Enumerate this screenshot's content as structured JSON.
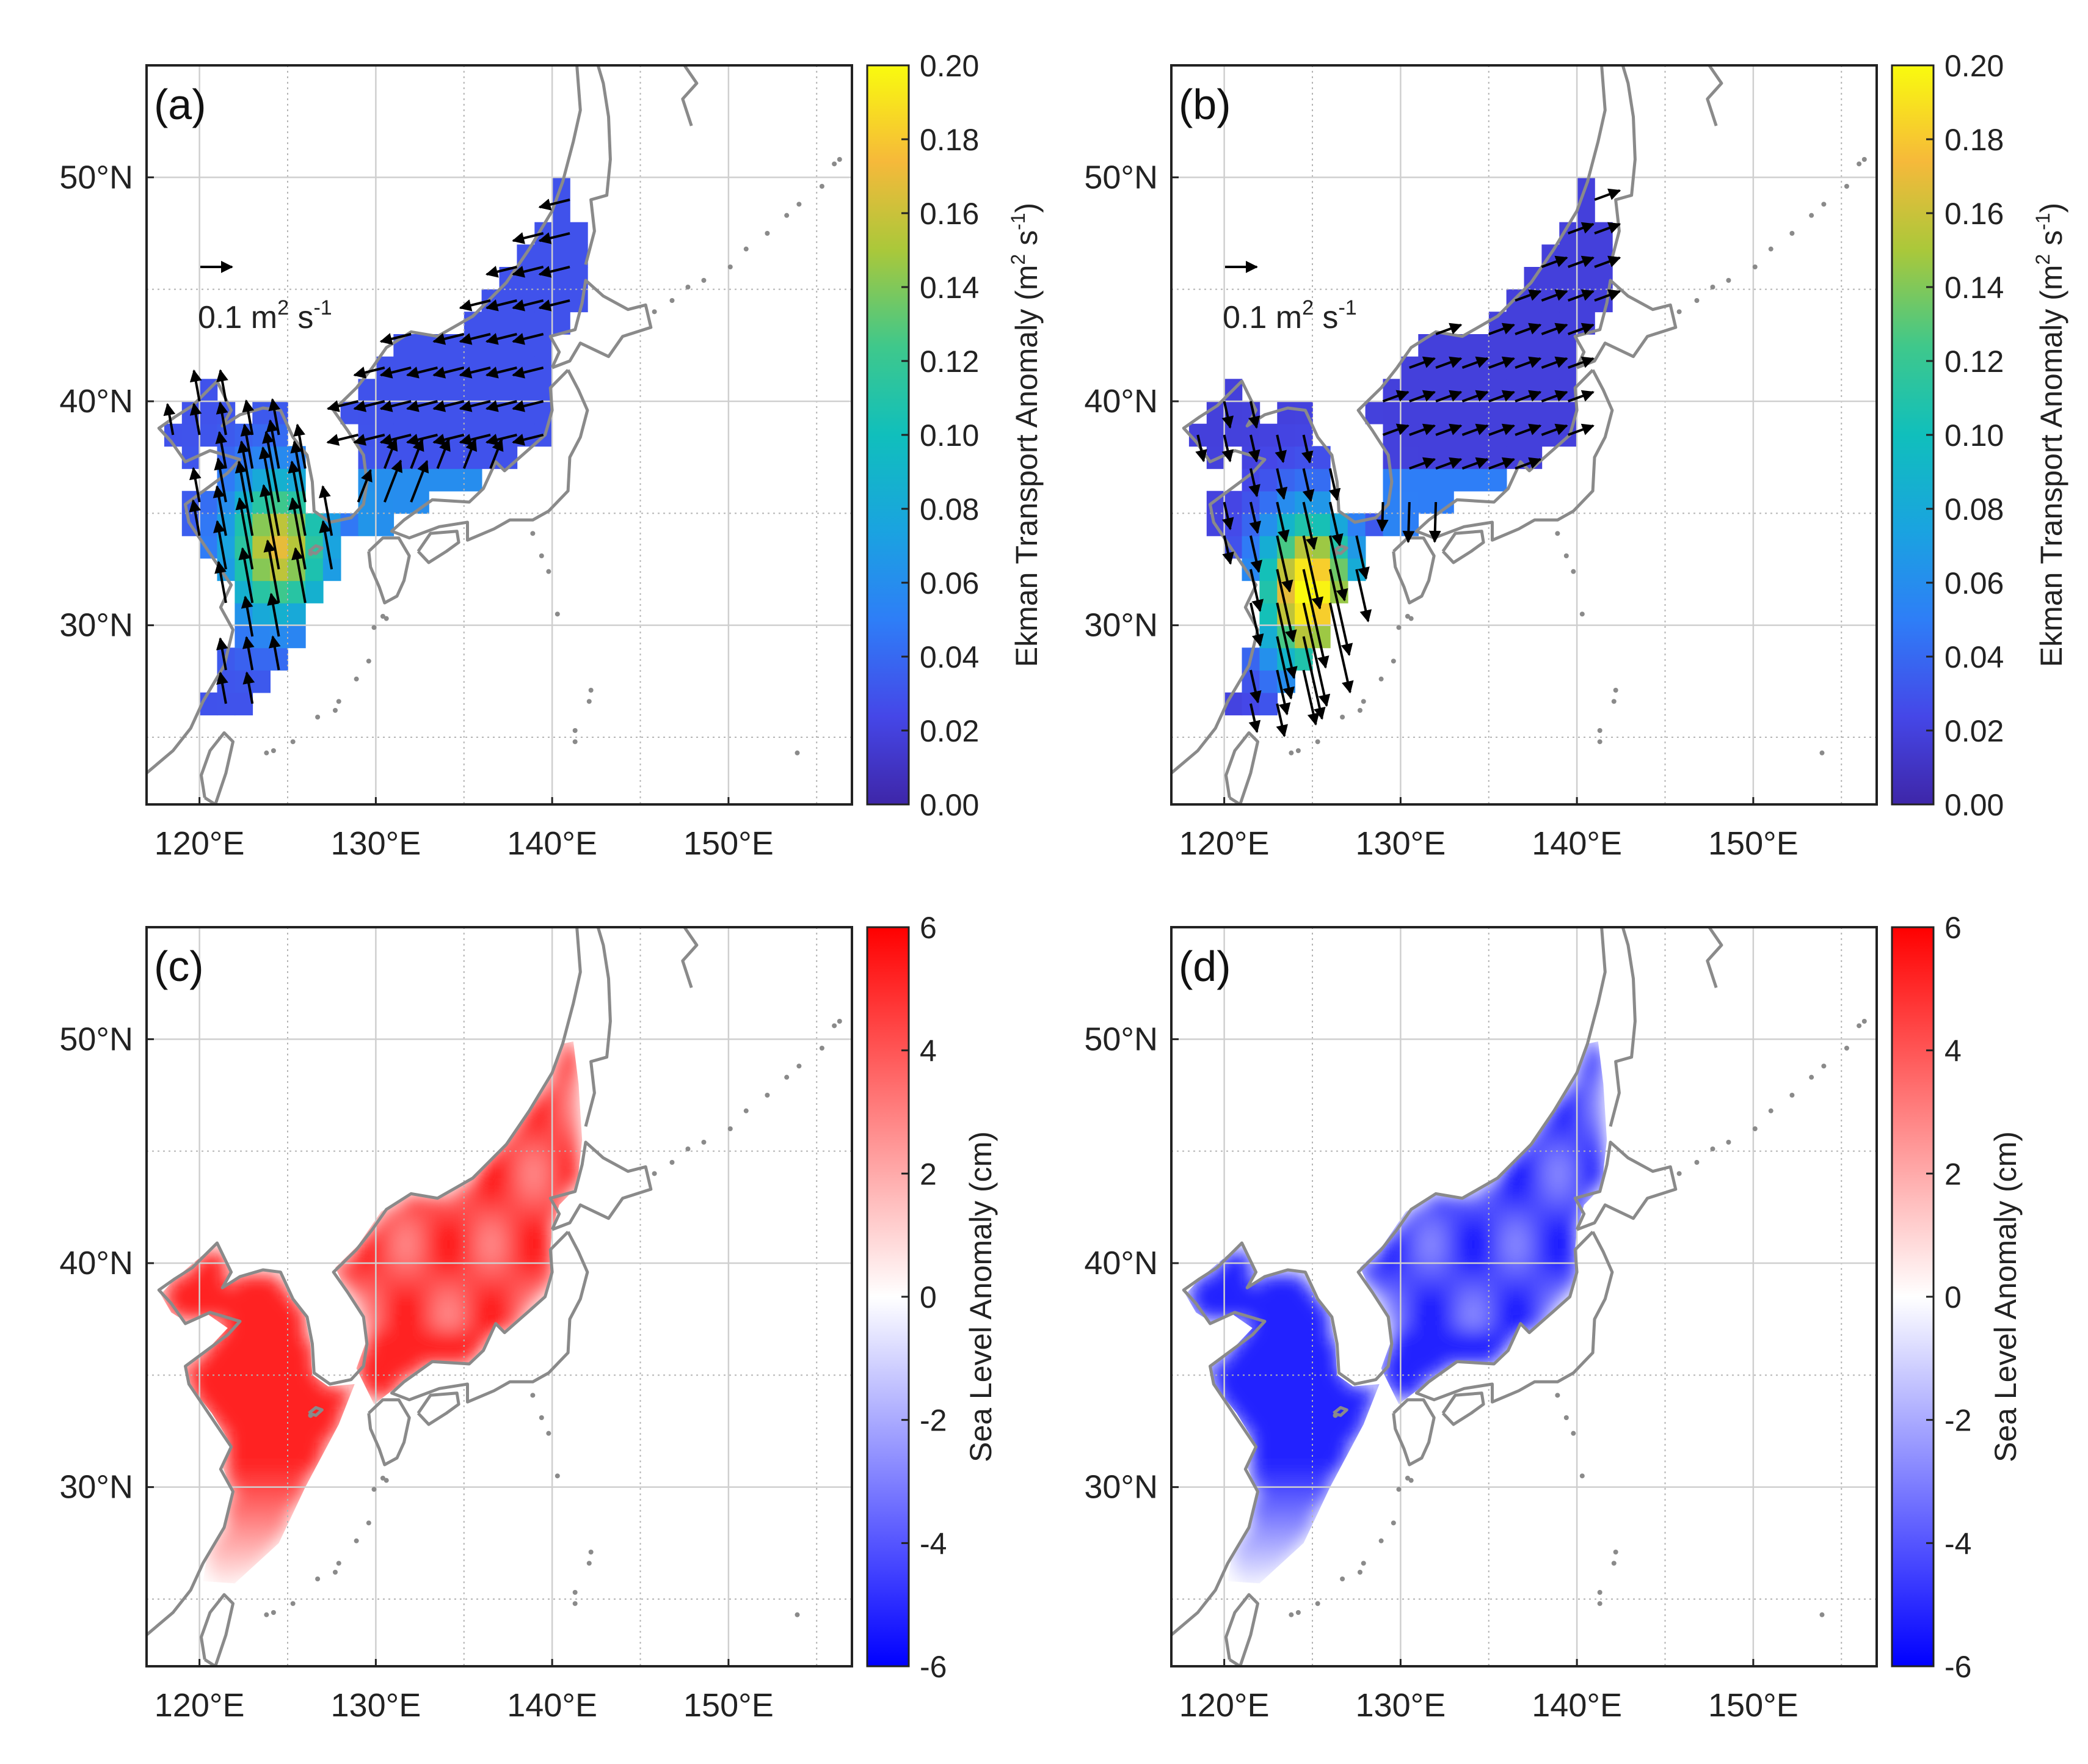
{
  "figure": {
    "colors": {
      "land_outline": "#8a8a8a",
      "grid": "#b4b4b4",
      "frame": "#222222",
      "arrow": "#000000"
    },
    "panels": [
      {
        "id": "a",
        "label": "(a)",
        "kind": "ekman",
        "variant": "positive",
        "xticks": [
          "120°E",
          "130°E",
          "140°E",
          "150°E"
        ],
        "yticks": [
          "30°N",
          "40°N",
          "50°N"
        ],
        "scale_label": "0.1 m",
        "scale_sup": "2",
        "scale_unit": " s",
        "scale_unit_sup": "-1",
        "colorbar": {
          "label": "Ekman Transport Anomaly (m",
          "label_sup": "2",
          "label_mid": " s",
          "label_sup2": "-1",
          "label_end": ")",
          "ticks": [
            "0.00",
            "0.02",
            "0.04",
            "0.06",
            "0.08",
            "0.10",
            "0.12",
            "0.14",
            "0.16",
            "0.18",
            "0.20"
          ],
          "range": [
            0.0,
            0.2
          ],
          "colormap": "parula"
        }
      },
      {
        "id": "b",
        "label": "(b)",
        "kind": "ekman",
        "variant": "negative",
        "xticks": [
          "120°E",
          "130°E",
          "140°E",
          "150°E"
        ],
        "yticks": [
          "30°N",
          "40°N",
          "50°N"
        ],
        "scale_label": "0.1 m",
        "scale_sup": "2",
        "scale_unit": " s",
        "scale_unit_sup": "-1",
        "colorbar": {
          "label": "Ekman Transport Anomaly (m",
          "label_sup": "2",
          "label_mid": " s",
          "label_sup2": "-1",
          "label_end": ")",
          "ticks": [
            "0.00",
            "0.02",
            "0.04",
            "0.06",
            "0.08",
            "0.10",
            "0.12",
            "0.14",
            "0.16",
            "0.18",
            "0.20"
          ],
          "range": [
            0.0,
            0.2
          ],
          "colormap": "parula"
        }
      },
      {
        "id": "c",
        "label": "(c)",
        "kind": "sla",
        "variant": "positive",
        "xticks": [
          "120°E",
          "130°E",
          "140°E",
          "150°E"
        ],
        "yticks": [
          "30°N",
          "40°N",
          "50°N"
        ],
        "colorbar": {
          "label": "Sea Level Anomaly (cm)",
          "ticks": [
            "-6",
            "-4",
            "-2",
            "0",
            "2",
            "4",
            "6"
          ],
          "range": [
            -6,
            6
          ],
          "colormap": "blue-white-red"
        }
      },
      {
        "id": "d",
        "label": "(d)",
        "kind": "sla",
        "variant": "negative",
        "xticks": [
          "120°E",
          "130°E",
          "140°E",
          "150°E"
        ],
        "yticks": [
          "30°N",
          "40°N",
          "50°N"
        ],
        "colorbar": {
          "label": "Sea Level Anomaly (cm)",
          "ticks": [
            "-6",
            "-4",
            "-2",
            "0",
            "2",
            "4",
            "6"
          ],
          "range": [
            -6,
            6
          ],
          "colormap": "blue-white-red"
        }
      }
    ]
  }
}
